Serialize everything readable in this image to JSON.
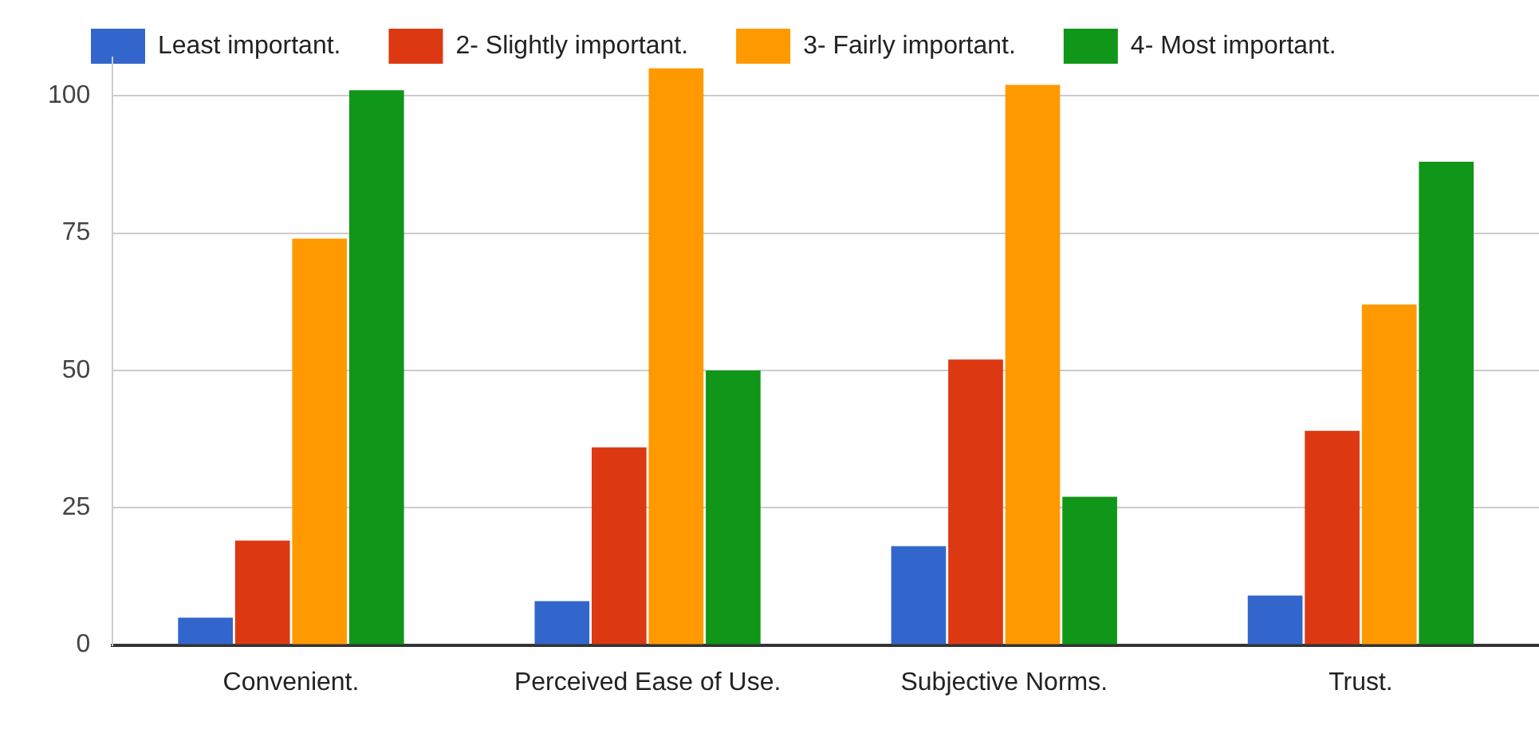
{
  "chart_data": {
    "type": "bar",
    "categories": [
      "Convenient.",
      "Perceived Ease of Use.",
      "Subjective Norms.",
      "Trust."
    ],
    "series": [
      {
        "name": "Least important.",
        "color": "#3366cc",
        "values": [
          5,
          8,
          18,
          9
        ]
      },
      {
        "name": "2- Slightly important.",
        "color": "#dc3912",
        "values": [
          19,
          36,
          52,
          39
        ]
      },
      {
        "name": "3- Fairly important.",
        "color": "#ff9900",
        "values": [
          74,
          105,
          102,
          62
        ]
      },
      {
        "name": "4- Most important.",
        "color": "#109618",
        "values": [
          101,
          50,
          27,
          88
        ]
      }
    ],
    "ylim": [
      0,
      107
    ],
    "yticks": [
      0,
      25,
      50,
      75,
      100
    ],
    "grid": "y",
    "legend": "top left"
  }
}
